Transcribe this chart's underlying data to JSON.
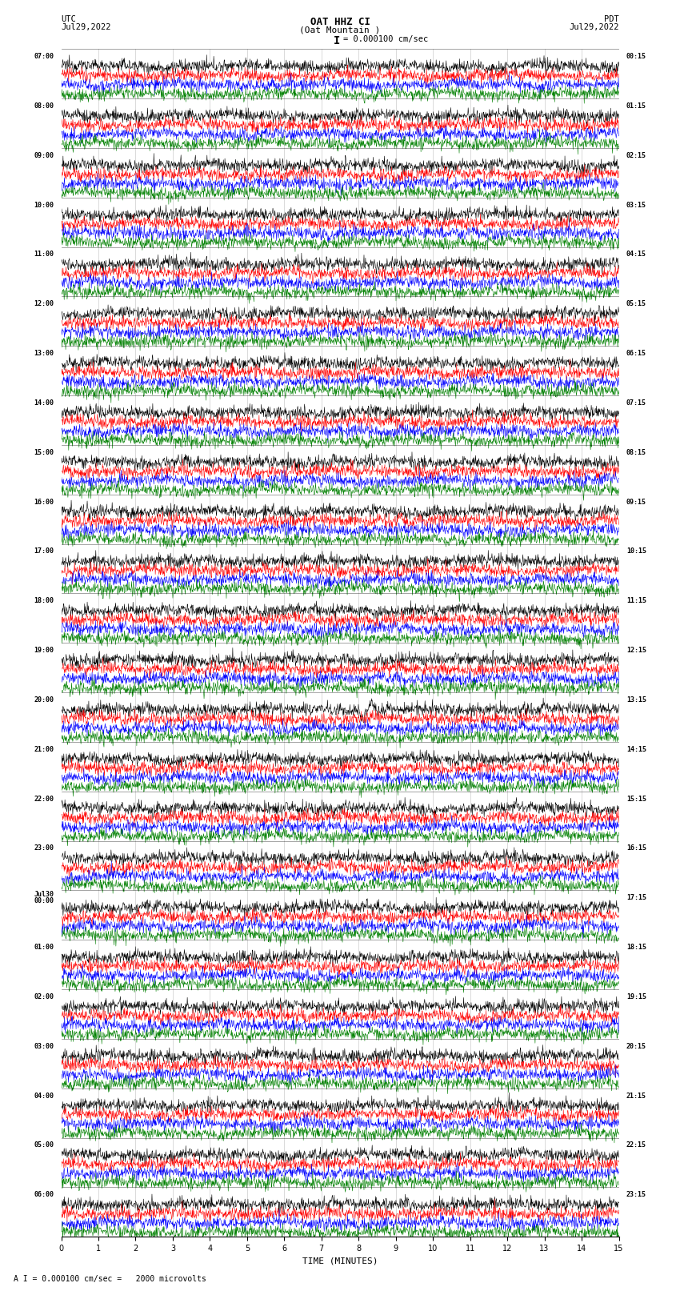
{
  "title_line1": "OAT HHZ CI",
  "title_line2": "(Oat Mountain )",
  "title_scale": "I = 0.000100 cm/sec",
  "left_label_line1": "UTC",
  "left_label_line2": "Jul29,2022",
  "right_label_line1": "PDT",
  "right_label_line2": "Jul29,2022",
  "footer_label": "A I = 0.000100 cm/sec =   2000 microvolts",
  "xlabel": "TIME (MINUTES)",
  "colors": [
    "black",
    "red",
    "blue",
    "green"
  ],
  "utc_times_left": [
    "07:00",
    "08:00",
    "09:00",
    "10:00",
    "11:00",
    "12:00",
    "13:00",
    "14:00",
    "15:00",
    "16:00",
    "17:00",
    "18:00",
    "19:00",
    "20:00",
    "21:00",
    "22:00",
    "23:00",
    "Jul30\n00:00",
    "01:00",
    "02:00",
    "03:00",
    "04:00",
    "05:00",
    "06:00"
  ],
  "pdt_times_right": [
    "00:15",
    "01:15",
    "02:15",
    "03:15",
    "04:15",
    "05:15",
    "06:15",
    "07:15",
    "08:15",
    "09:15",
    "10:15",
    "11:15",
    "12:15",
    "13:15",
    "14:15",
    "15:15",
    "16:15",
    "17:15",
    "18:15",
    "19:15",
    "20:15",
    "21:15",
    "22:15",
    "23:15"
  ],
  "n_hour_groups": 24,
  "n_channels": 4,
  "minutes_per_row": 15,
  "x_ticks": [
    0,
    1,
    2,
    3,
    4,
    5,
    6,
    7,
    8,
    9,
    10,
    11,
    12,
    13,
    14,
    15
  ],
  "background_color": "white",
  "vertical_grid_minutes": [
    1,
    2,
    3,
    4,
    5,
    6,
    7,
    8,
    9,
    10,
    11,
    12,
    13,
    14
  ]
}
